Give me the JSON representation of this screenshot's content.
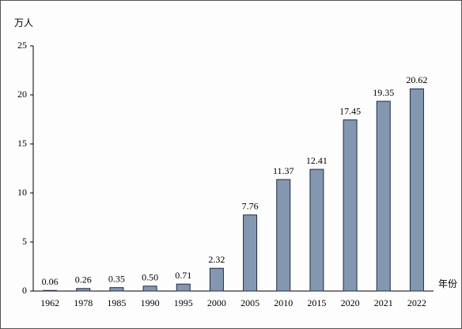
{
  "chart_data": {
    "type": "bar",
    "y_label": "万人",
    "x_label": "年份",
    "categories": [
      "1962",
      "1978",
      "1985",
      "1990",
      "1995",
      "2000",
      "2005",
      "2010",
      "2015",
      "2020",
      "2021",
      "2022"
    ],
    "values": [
      0.06,
      0.26,
      0.35,
      0.5,
      0.71,
      2.32,
      7.76,
      11.37,
      12.41,
      17.45,
      19.35,
      20.62
    ],
    "value_labels": [
      "0.06",
      "0.26",
      "0.35",
      "0.50",
      "0.71",
      "2.32",
      "7.76",
      "11.37",
      "12.41",
      "17.45",
      "19.35",
      "20.62"
    ],
    "color": "#8497b0",
    "ylim": [
      0,
      25
    ],
    "yticks": [
      0,
      5,
      10,
      15,
      20,
      25
    ],
    "grid": false
  }
}
